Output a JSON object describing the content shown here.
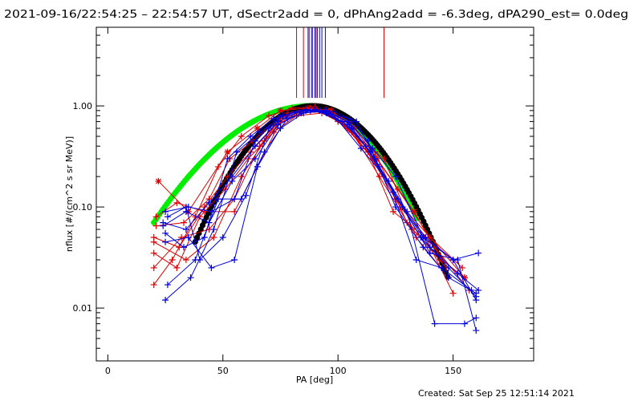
{
  "chart_data": {
    "type": "line",
    "title": "2021-09-16/22:54:25 – 22:54:57 UT, dSectr2add = 0, dPhAng2add = -6.3deg, dPA290_est=  0.0deg",
    "xlabel": "PA [deg]",
    "ylabel": "nflux [#/(cm^2 s sr MeV)]",
    "xlim": [
      -5,
      185
    ],
    "ylim": [
      0.003,
      6.0
    ],
    "y_scale": "log",
    "x_ticks": [
      0,
      50,
      100,
      150
    ],
    "y_ticks": [
      {
        "value": 0.01,
        "label": "0.01"
      },
      {
        "value": 0.1,
        "label": "0.10"
      },
      {
        "value": 1.0,
        "label": "1.00"
      }
    ],
    "grid": false,
    "footer": "Created: Sat Sep 25 12:51:14 2021",
    "colors": {
      "red": "#dd0000",
      "blue": "#0000dd",
      "green": "#00ee00",
      "black": "#000000"
    },
    "vertical_markers": {
      "red": [
        82,
        85,
        87.5,
        89,
        90.5,
        120
      ],
      "blue": [
        87,
        88.5,
        90,
        91,
        92,
        93,
        94.5
      ],
      "y_bottom": 1.2
    },
    "fit_curves": [
      {
        "color": "green",
        "center": 88,
        "sigma_left": 29.5,
        "sigma_right": 20.5,
        "peak": 1.0,
        "x_range": [
          20,
          135
        ]
      },
      {
        "color": "black",
        "center": 89,
        "sigma_left": 20.5,
        "sigma_right": 21.0,
        "peak": 1.0,
        "x_range": [
          38,
          148
        ]
      }
    ],
    "series": [
      {
        "color": "red",
        "marker": "*",
        "x": [
          22,
          35,
          52,
          65,
          75,
          87,
          97,
          107,
          117,
          133,
          145,
          155
        ],
        "y": [
          0.18,
          0.09,
          0.35,
          0.6,
          0.9,
          0.95,
          0.9,
          0.6,
          0.3,
          0.09,
          0.03,
          0.02
        ]
      },
      {
        "color": "red",
        "marker": "+",
        "x": [
          21,
          33,
          44,
          53,
          63,
          74,
          85,
          95,
          105,
          116,
          130,
          147
        ],
        "y": [
          0.065,
          0.07,
          0.12,
          0.3,
          0.45,
          0.75,
          0.88,
          0.92,
          0.7,
          0.35,
          0.07,
          0.025
        ]
      },
      {
        "color": "red",
        "marker": "+",
        "x": [
          20,
          31,
          42,
          52,
          62,
          73,
          84,
          94,
          104,
          115,
          127,
          142,
          157
        ],
        "y": [
          0.05,
          0.04,
          0.1,
          0.2,
          0.35,
          0.65,
          0.85,
          0.88,
          0.6,
          0.3,
          0.1,
          0.04,
          0.015
        ]
      },
      {
        "color": "red",
        "marker": "+",
        "x": [
          20,
          30,
          40,
          51,
          61,
          72,
          82,
          93,
          103,
          113,
          125,
          140,
          155
        ],
        "y": [
          0.035,
          0.025,
          0.08,
          0.15,
          0.3,
          0.55,
          0.8,
          0.85,
          0.65,
          0.35,
          0.12,
          0.05,
          0.02
        ]
      },
      {
        "color": "red",
        "marker": "+",
        "x": [
          20,
          32,
          44,
          55,
          66,
          76,
          86,
          96,
          106,
          118,
          132,
          150
        ],
        "y": [
          0.025,
          0.05,
          0.06,
          0.12,
          0.4,
          0.8,
          0.92,
          0.9,
          0.55,
          0.2,
          0.06,
          0.03
        ]
      },
      {
        "color": "red",
        "marker": "+",
        "x": [
          20,
          28,
          38,
          48,
          58,
          70,
          80,
          90,
          100,
          112,
          124,
          138,
          150
        ],
        "y": [
          0.017,
          0.03,
          0.08,
          0.25,
          0.5,
          0.8,
          0.95,
          0.98,
          0.7,
          0.4,
          0.09,
          0.05,
          0.014
        ]
      },
      {
        "color": "red",
        "marker": "+",
        "x": [
          20,
          34,
          46,
          58,
          68,
          78,
          88,
          98,
          108,
          120,
          134,
          148
        ],
        "y": [
          0.045,
          0.03,
          0.05,
          0.2,
          0.45,
          0.85,
          0.95,
          0.88,
          0.5,
          0.3,
          0.05,
          0.02
        ]
      },
      {
        "color": "red",
        "marker": "+",
        "x": [
          21,
          30,
          42,
          55,
          65,
          75,
          85,
          95,
          105,
          116,
          126,
          140,
          154
        ],
        "y": [
          0.08,
          0.11,
          0.09,
          0.09,
          0.25,
          0.7,
          0.9,
          0.85,
          0.6,
          0.32,
          0.15,
          0.05,
          0.025
        ]
      },
      {
        "color": "blue",
        "marker": "+",
        "x": [
          25,
          35,
          45,
          55,
          64,
          75,
          86,
          95,
          105,
          113,
          125,
          137,
          148,
          160
        ],
        "y": [
          0.09,
          0.1,
          0.09,
          0.12,
          0.45,
          0.8,
          0.9,
          0.85,
          0.75,
          0.45,
          0.1,
          0.04,
          0.02,
          0.014
        ]
      },
      {
        "color": "blue",
        "marker": "+",
        "x": [
          24,
          34,
          44,
          54,
          64,
          74,
          84,
          94,
          104,
          114,
          126,
          138,
          150,
          160
        ],
        "y": [
          0.07,
          0.06,
          0.11,
          0.2,
          0.4,
          0.7,
          0.9,
          0.88,
          0.65,
          0.35,
          0.12,
          0.05,
          0.03,
          0.012
        ]
      },
      {
        "color": "blue",
        "marker": "+",
        "x": [
          25,
          33,
          42,
          52,
          62,
          72,
          82,
          92,
          102,
          112,
          124,
          136,
          148,
          160
        ],
        "y": [
          0.055,
          0.04,
          0.05,
          0.3,
          0.5,
          0.75,
          0.88,
          0.9,
          0.7,
          0.4,
          0.14,
          0.05,
          0.025,
          0.013
        ]
      },
      {
        "color": "blue",
        "marker": "+",
        "x": [
          25,
          36,
          46,
          56,
          66,
          76,
          86,
          96,
          106,
          116,
          128,
          140,
          152,
          160
        ],
        "y": [
          0.012,
          0.02,
          0.06,
          0.35,
          0.55,
          0.8,
          0.92,
          0.85,
          0.6,
          0.3,
          0.1,
          0.035,
          0.03,
          0.006
        ]
      },
      {
        "color": "blue",
        "marker": "+",
        "x": [
          26,
          38,
          48,
          58,
          68,
          78,
          88,
          98,
          108,
          118,
          130,
          142,
          155,
          160
        ],
        "y": [
          0.017,
          0.03,
          0.12,
          0.12,
          0.35,
          0.75,
          0.9,
          0.88,
          0.7,
          0.25,
          0.09,
          0.007,
          0.007,
          0.008
        ]
      },
      {
        "color": "blue",
        "marker": "+",
        "x": [
          26,
          34,
          40,
          50,
          60,
          70,
          80,
          90,
          100,
          110,
          122,
          134,
          145,
          158
        ],
        "y": [
          0.08,
          0.1,
          0.03,
          0.05,
          0.13,
          0.6,
          0.85,
          0.92,
          0.72,
          0.38,
          0.18,
          0.03,
          0.025,
          0.015
        ]
      },
      {
        "color": "blue",
        "marker": "+",
        "x": [
          25,
          35,
          45,
          55,
          65,
          75,
          85,
          95,
          105,
          115,
          125,
          137,
          150,
          161
        ],
        "y": [
          0.045,
          0.05,
          0.025,
          0.03,
          0.25,
          0.6,
          0.85,
          0.9,
          0.68,
          0.38,
          0.2,
          0.05,
          0.03,
          0.035
        ]
      },
      {
        "color": "blue",
        "marker": "+",
        "x": [
          24,
          34,
          44,
          54,
          64,
          74,
          84,
          94,
          104,
          114,
          128,
          140,
          152,
          161
        ],
        "y": [
          0.065,
          0.09,
          0.07,
          0.18,
          0.3,
          0.65,
          0.85,
          0.9,
          0.7,
          0.35,
          0.1,
          0.04,
          0.022,
          0.015
        ]
      }
    ]
  }
}
